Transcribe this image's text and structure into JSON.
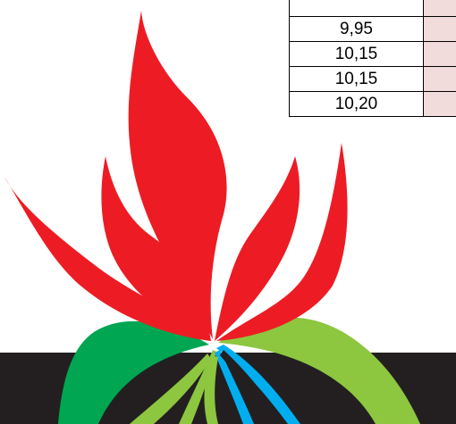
{
  "table": {
    "rows": [
      {
        "value": ""
      },
      {
        "value": "9,95"
      },
      {
        "value": "10,15"
      },
      {
        "value": "10,15"
      },
      {
        "value": "10,20"
      }
    ]
  },
  "colors": {
    "petal_red": "#ed1c24",
    "leaf_dark_green": "#00a651",
    "leaf_light_green": "#8dc63f",
    "water_blue": "#00aeef",
    "ground_black": "#231f20",
    "cell_tint": "#f2dcdb"
  }
}
